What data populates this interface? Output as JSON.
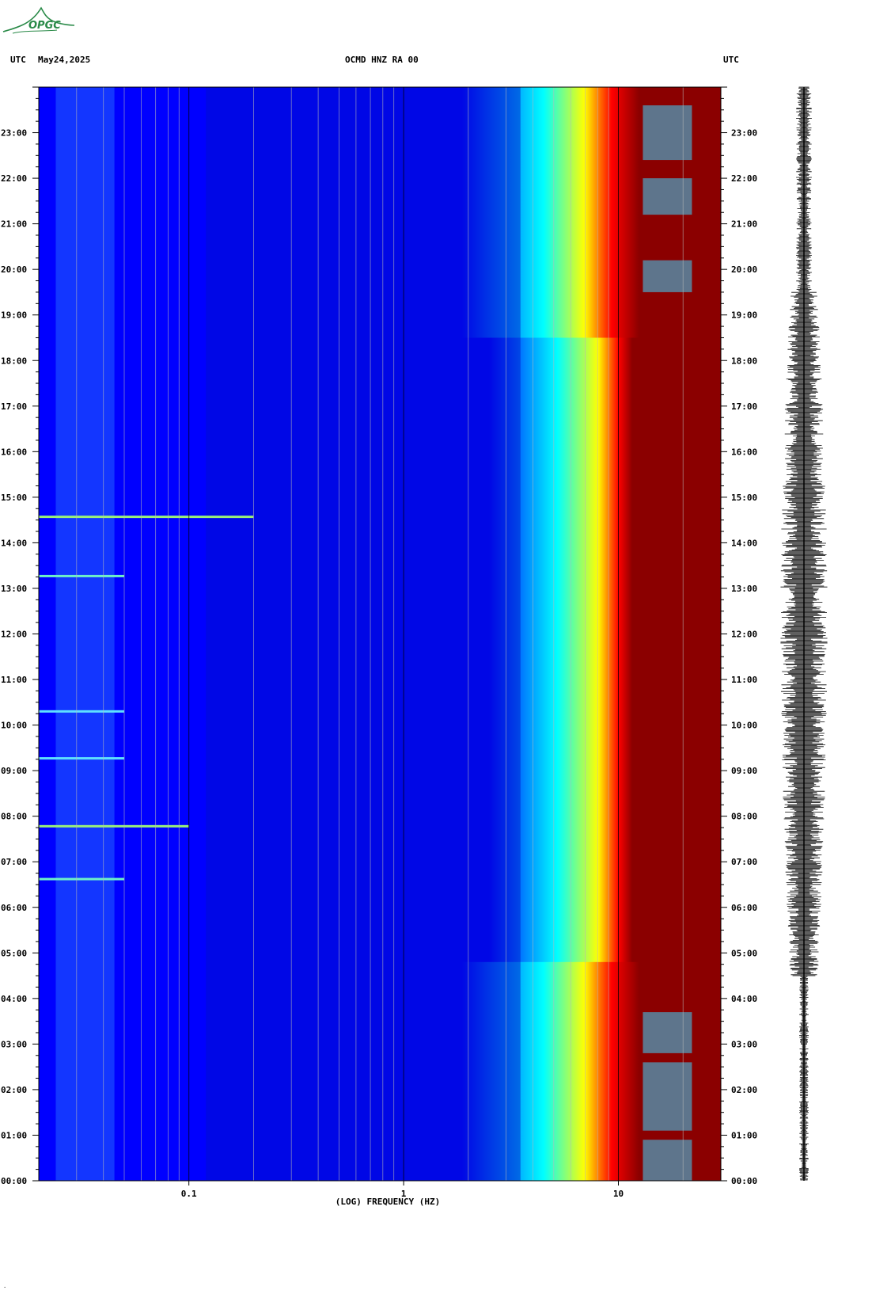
{
  "header": {
    "left_tz": "UTC",
    "date": "May24,2025",
    "station": "OCMD HNZ RA 00",
    "right_tz": "UTC"
  },
  "logo": {
    "text": "OPGC"
  },
  "chart_data": {
    "type": "heatmap",
    "title": "OCMD HNZ RA 00",
    "xlabel": "(LOG) FREQUENCY (HZ)",
    "x_scale": "log",
    "x_range_hz": [
      0.02,
      30
    ],
    "x_ticks": [
      {
        "value": 0.1,
        "label": "0.1"
      },
      {
        "value": 1,
        "label": "1"
      },
      {
        "value": 10,
        "label": "10"
      }
    ],
    "y_range_hours": [
      0,
      24
    ],
    "y_ticks": [
      "00:00",
      "01:00",
      "02:00",
      "03:00",
      "04:00",
      "05:00",
      "06:00",
      "07:00",
      "08:00",
      "09:00",
      "10:00",
      "11:00",
      "12:00",
      "13:00",
      "14:00",
      "15:00",
      "16:00",
      "17:00",
      "18:00",
      "19:00",
      "20:00",
      "21:00",
      "22:00",
      "23:00"
    ],
    "colormap": [
      "#00008b",
      "#0000ff",
      "#00ffff",
      "#ffff00",
      "#ff0000",
      "#8b0000"
    ],
    "seismogram": {
      "side": "right",
      "color": "#000000"
    }
  }
}
